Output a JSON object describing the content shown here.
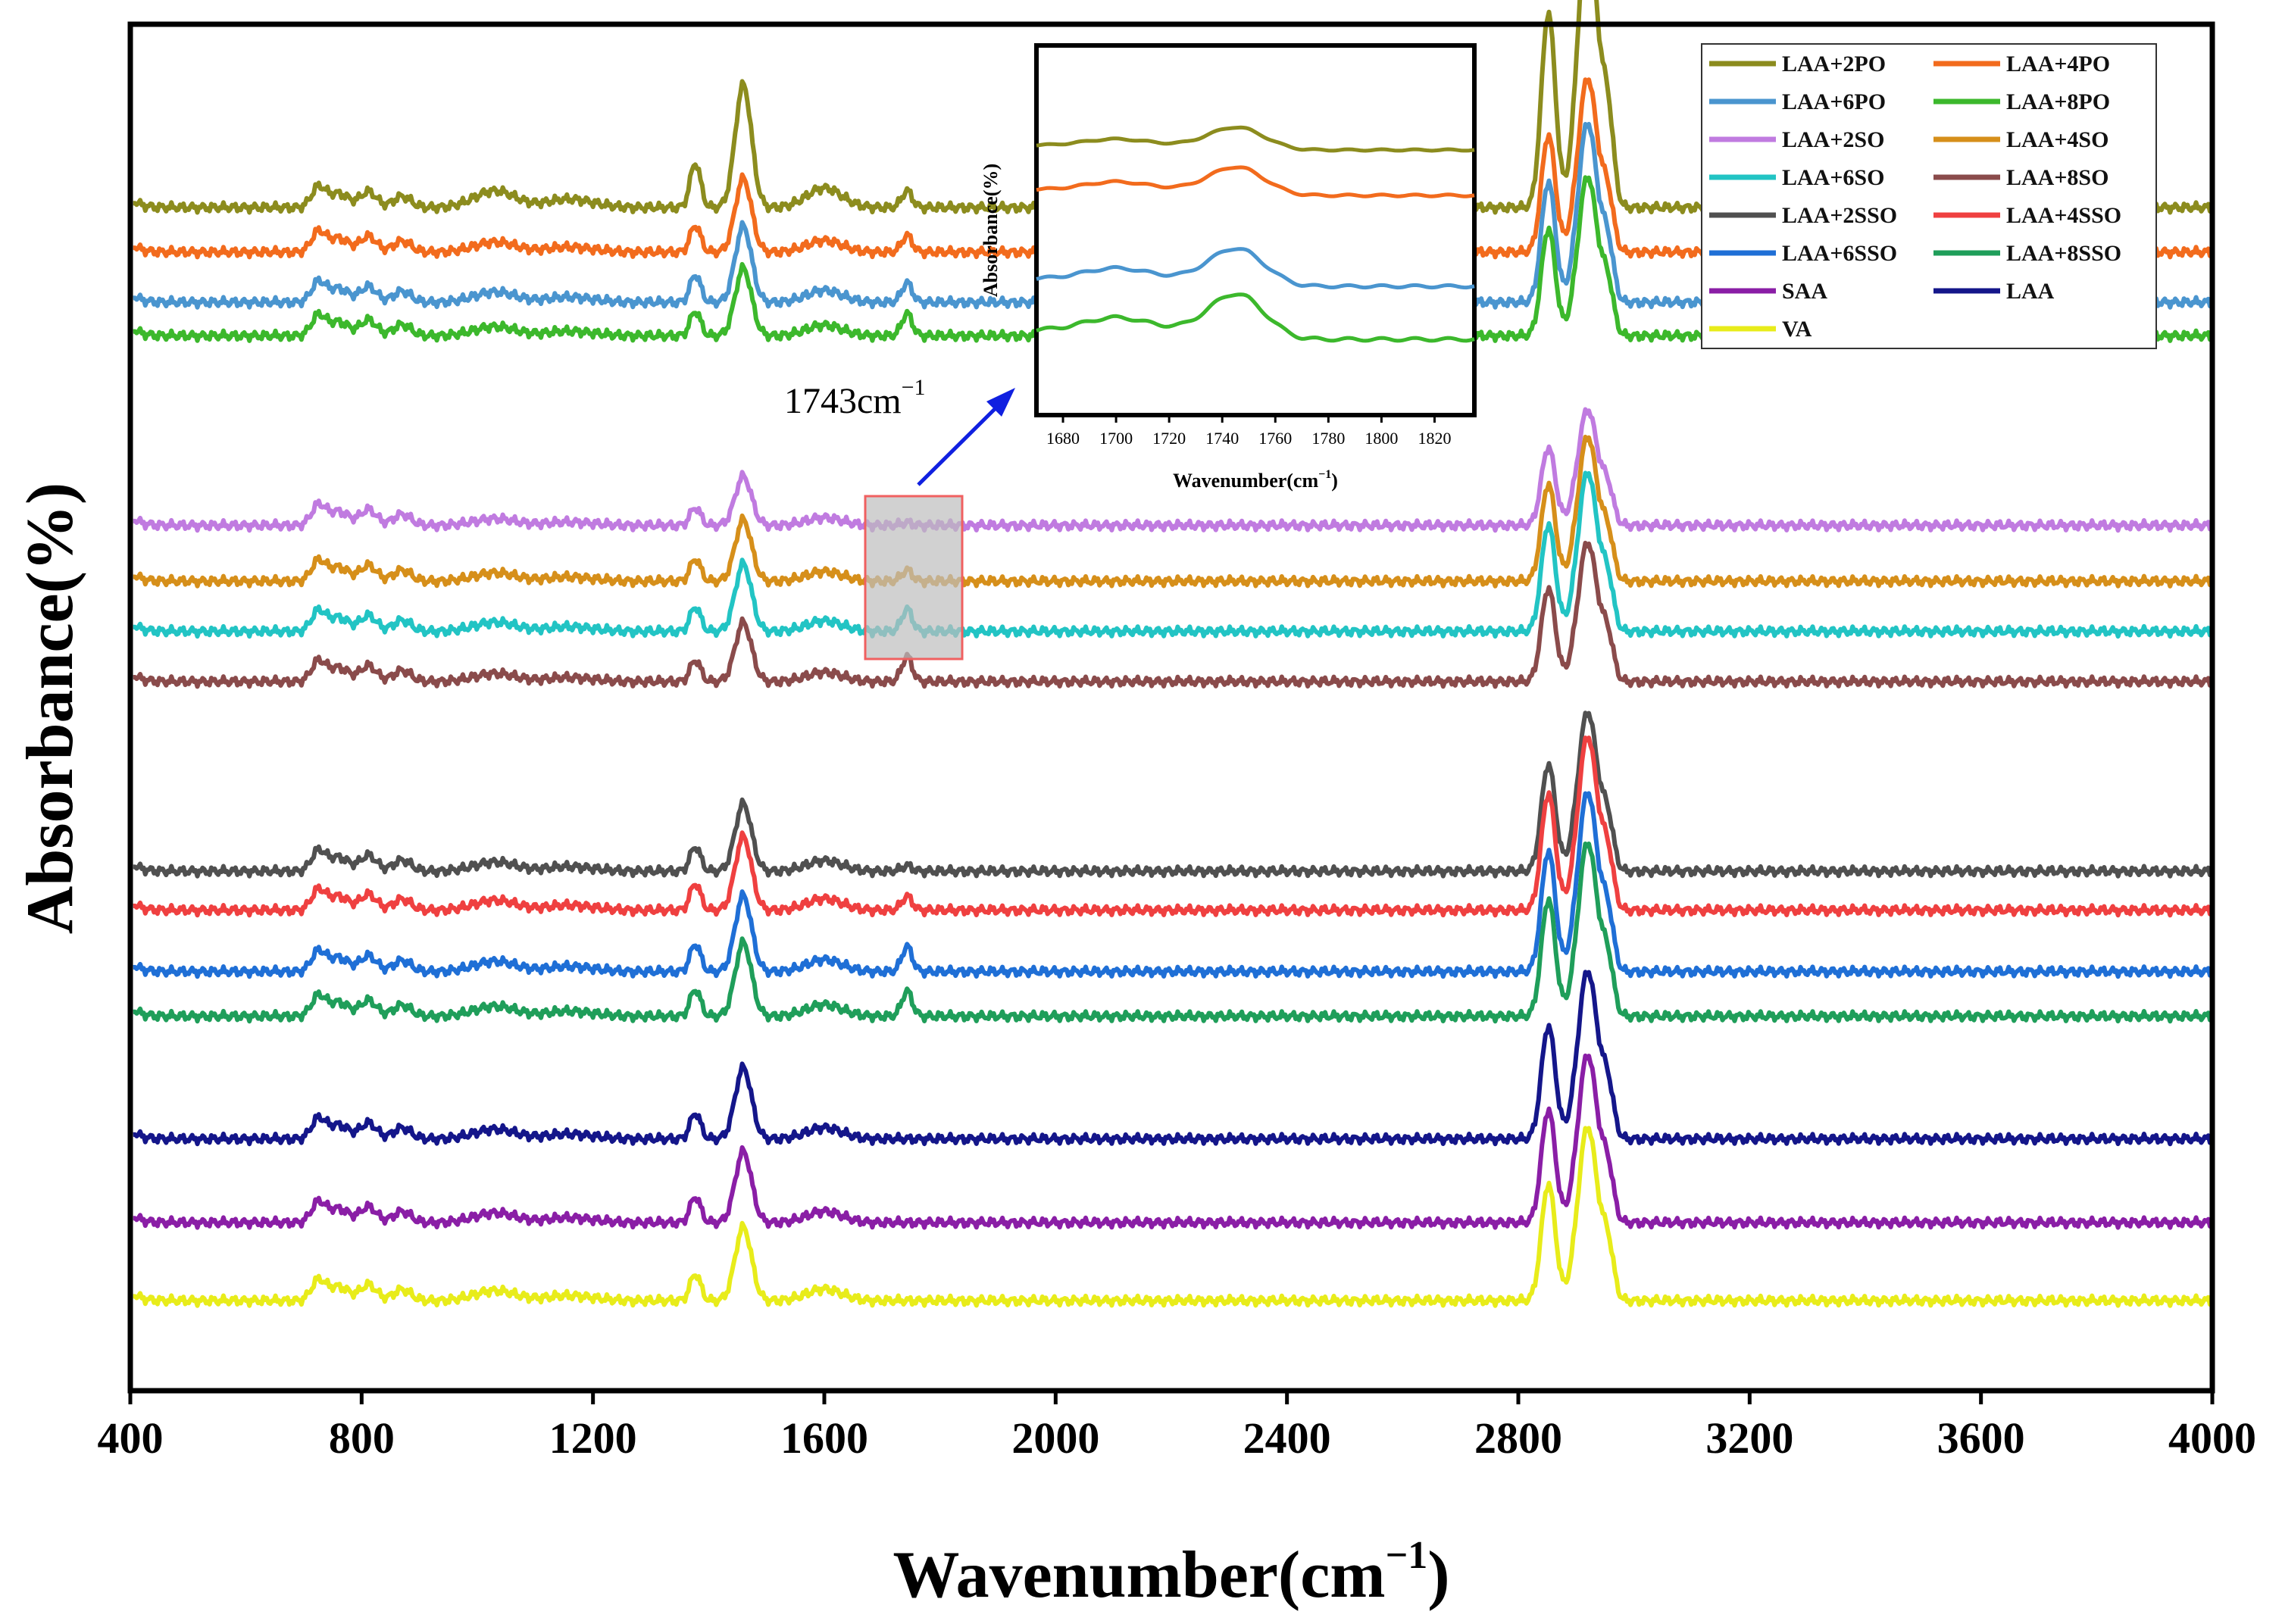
{
  "chart_data": {
    "type": "line",
    "title": "",
    "xlabel": "Wavenumber(cm",
    "xlabel_sup": "−1",
    "xlabel_close": ")",
    "ylabel": "Absorbance(%)",
    "xlim": [
      400,
      4000
    ],
    "xticks": [
      "400",
      "800",
      "1200",
      "1600",
      "2000",
      "2400",
      "2800",
      "3200",
      "3600",
      "4000"
    ],
    "grid": false,
    "legend_position": "top-right",
    "peaks_cm-1": [
      725,
      810,
      870,
      1030,
      1160,
      1377,
      1460,
      1600,
      1743,
      2852,
      2920,
      2955
    ],
    "series": [
      {
        "name": "LAA+2PO",
        "color": "#8c8c1e",
        "baseline": 20.4,
        "peak_scale": 1.0,
        "ester_1743": 0.3,
        "group": "PO"
      },
      {
        "name": "LAA+4PO",
        "color": "#f26b1d",
        "baseline": 19.6,
        "peak_scale": 0.6,
        "ester_1743": 0.3,
        "group": "PO"
      },
      {
        "name": "LAA+6PO",
        "color": "#4a95cf",
        "baseline": 18.7,
        "peak_scale": 0.62,
        "ester_1743": 0.35,
        "group": "PO"
      },
      {
        "name": "LAA+8PO",
        "color": "#3cb82c",
        "baseline": 18.1,
        "peak_scale": 0.55,
        "ester_1743": 0.4,
        "group": "PO"
      },
      {
        "name": "LAA+2SO",
        "color": "#c07be0",
        "baseline": 14.7,
        "peak_scale": 0.4,
        "ester_1743": 0.05,
        "group": "SO"
      },
      {
        "name": "LAA+4SO",
        "color": "#d68f1a",
        "baseline": 13.7,
        "peak_scale": 0.5,
        "ester_1743": 0.2,
        "group": "SO"
      },
      {
        "name": "LAA+6SO",
        "color": "#22c4c4",
        "baseline": 12.8,
        "peak_scale": 0.55,
        "ester_1743": 0.4,
        "group": "SO"
      },
      {
        "name": "LAA+8SO",
        "color": "#8a4b4b",
        "baseline": 11.9,
        "peak_scale": 0.48,
        "ester_1743": 0.45,
        "group": "SO"
      },
      {
        "name": "LAA+2SSO",
        "color": "#505050",
        "baseline": 8.5,
        "peak_scale": 0.55,
        "ester_1743": 0.1,
        "group": "SSO"
      },
      {
        "name": "LAA+4SSO",
        "color": "#ef4040",
        "baseline": 7.8,
        "peak_scale": 0.6,
        "ester_1743": 0.25,
        "group": "SSO"
      },
      {
        "name": "LAA+6SSO",
        "color": "#1f6fd6",
        "baseline": 6.7,
        "peak_scale": 0.62,
        "ester_1743": 0.45,
        "group": "SSO"
      },
      {
        "name": "LAA+8SSO",
        "color": "#1f9e5a",
        "baseline": 5.9,
        "peak_scale": 0.6,
        "ester_1743": 0.45,
        "group": "SSO"
      },
      {
        "name": "SAA",
        "color": "#8a1ea6",
        "baseline": 2.2,
        "peak_scale": 0.58,
        "ester_1743": 0.0,
        "group": "base"
      },
      {
        "name": "LAA",
        "color": "#14168a",
        "baseline": 3.7,
        "peak_scale": 0.58,
        "ester_1743": 0.0,
        "group": "base"
      },
      {
        "name": "VA",
        "color": "#e8ec1a",
        "baseline": 0.8,
        "peak_scale": 0.6,
        "ester_1743": 0.0,
        "group": "base"
      }
    ],
    "annotation": {
      "text": "1743cm",
      "sup": "−1"
    },
    "inset": {
      "xlim": [
        1670,
        1835
      ],
      "xticks": [
        "1680",
        "1700",
        "1720",
        "1740",
        "1760",
        "1780",
        "1800",
        "1820"
      ],
      "xlabel": "Wavenumber(cm",
      "xlabel_sup": "−1",
      "xlabel_close": ")",
      "ylabel": "Absorbance(%)",
      "series": [
        "LAA+2PO",
        "LAA+4PO",
        "LAA+6PO",
        "LAA+8PO"
      ]
    }
  }
}
